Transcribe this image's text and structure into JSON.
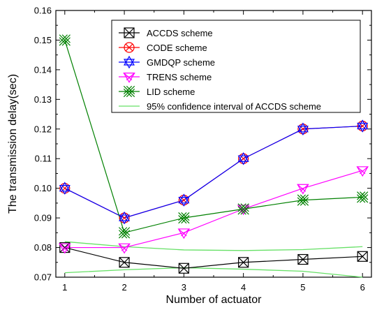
{
  "chart_data": {
    "type": "line",
    "title": "",
    "xlabel": "Number of actuator",
    "ylabel": "The transmission delay(sec)",
    "xlim": [
      0.85,
      6.15
    ],
    "ylim": [
      0.07,
      0.16
    ],
    "xticks": [
      1,
      2,
      3,
      4,
      5,
      6
    ],
    "yticks": [
      0.07,
      0.08,
      0.09,
      0.1,
      0.11,
      0.12,
      0.13,
      0.14,
      0.15,
      0.16
    ],
    "ytick_labels": [
      "0.07",
      "0.08",
      "0.09",
      "0.10",
      "0.11",
      "0.12",
      "0.13",
      "0.14",
      "0.15",
      "0.16"
    ],
    "grid": false,
    "legend_position": "top-right",
    "x": [
      1,
      2,
      3,
      4,
      5,
      6
    ],
    "series": [
      {
        "name": "ACCDS scheme",
        "values": [
          0.08,
          0.075,
          0.073,
          0.075,
          0.076,
          0.077
        ],
        "color": "#000000",
        "marker": "box-x"
      },
      {
        "name": "CODE scheme",
        "values": [
          0.1,
          0.09,
          0.096,
          0.11,
          0.12,
          0.121
        ],
        "color": "#ff0000",
        "marker": "circle-x"
      },
      {
        "name": "GMDQP scheme",
        "values": [
          0.1,
          0.09,
          0.096,
          0.11,
          0.12,
          0.121
        ],
        "color": "#0000ff",
        "marker": "star6"
      },
      {
        "name": "TRENS scheme",
        "values": [
          0.08,
          0.08,
          0.085,
          0.093,
          0.1,
          0.106
        ],
        "color": "#ff00ff",
        "marker": "tri-down-x"
      },
      {
        "name": "LID scheme",
        "values": [
          0.15,
          0.085,
          0.09,
          0.093,
          0.096,
          0.097
        ],
        "color": "#008000",
        "marker": "double-x"
      }
    ],
    "confidence_interval": {
      "name": "95% confidence interval of ACCDS scheme",
      "color": "#66e066",
      "upper": [
        {
          "x": 1,
          "y": 0.082
        },
        {
          "x": 2,
          "y": 0.0803
        },
        {
          "x": 3,
          "y": 0.0792
        },
        {
          "x": 4,
          "y": 0.079
        },
        {
          "x": 5,
          "y": 0.0793
        },
        {
          "x": 6,
          "y": 0.0803
        }
      ],
      "lower": [
        {
          "x": 1,
          "y": 0.0715
        },
        {
          "x": 2,
          "y": 0.0725
        },
        {
          "x": 3,
          "y": 0.0732
        },
        {
          "x": 4,
          "y": 0.0727
        },
        {
          "x": 5,
          "y": 0.072
        },
        {
          "x": 6,
          "y": 0.07
        }
      ]
    }
  }
}
